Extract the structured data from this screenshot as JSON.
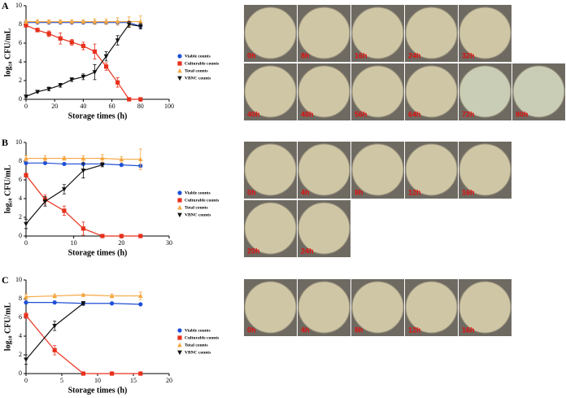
{
  "chart_data": [
    {
      "type": "line",
      "panel": "A",
      "ylabel": "log₁₀ CFU/mL",
      "xlabel": "Storage times (h)",
      "xlim": [
        0,
        100
      ],
      "xticks": [
        0,
        20,
        40,
        60,
        80,
        100
      ],
      "ylim": [
        0,
        10
      ],
      "yticks": [
        0,
        2,
        4,
        6,
        8,
        10
      ],
      "x": [
        0,
        8,
        16,
        24,
        32,
        40,
        48,
        56,
        64,
        72,
        80
      ],
      "series": [
        {
          "name": "Viable counts",
          "color": "#1f4fd6",
          "marker": "circle",
          "values": [
            8.2,
            8.2,
            8.2,
            8.2,
            8.2,
            8.2,
            8.2,
            8.2,
            8.2,
            8.2,
            7.8
          ],
          "errors": [
            0.1,
            0.1,
            0.1,
            0.1,
            0.1,
            0.1,
            0.1,
            0.1,
            0.1,
            0.1,
            0.2
          ]
        },
        {
          "name": "Culturable counts",
          "color": "#e8301c",
          "marker": "square",
          "values": [
            7.9,
            7.4,
            7.0,
            6.5,
            6.1,
            5.7,
            5.1,
            3.5,
            1.8,
            0,
            0
          ],
          "errors": [
            0.1,
            0.2,
            0.3,
            0.6,
            0.3,
            0.4,
            0.8,
            0.4,
            0.5,
            0,
            0
          ]
        },
        {
          "name": "Total counts",
          "color": "#f5a742",
          "marker": "triangle-up",
          "values": [
            8.3,
            8.3,
            8.3,
            8.3,
            8.3,
            8.3,
            8.3,
            8.3,
            8.3,
            8.3,
            8.3
          ],
          "errors": [
            0.2,
            0.2,
            0.2,
            0.2,
            0.2,
            0.2,
            0.3,
            0.3,
            0.4,
            0.5,
            0.6
          ]
        },
        {
          "name": "VBNC counts",
          "color": "#111111",
          "marker": "triangle-down",
          "values": [
            0.3,
            0.8,
            1.1,
            1.5,
            2.1,
            2.4,
            2.9,
            4.6,
            6.3,
            8.0,
            7.8
          ],
          "errors": [
            0.1,
            0.1,
            0.2,
            0.2,
            0.2,
            0.3,
            0.8,
            0.5,
            0.5,
            0.3,
            0.3
          ]
        }
      ],
      "photo_rows": [
        [
          "0h",
          "8h",
          "16h",
          "24h",
          "32h"
        ],
        [
          "40h",
          "48h",
          "56h",
          "64h",
          "72h",
          "80h"
        ]
      ]
    },
    {
      "type": "line",
      "panel": "B",
      "ylabel": "log₁₀ CFU/mL",
      "xlabel": "Storage times (h)",
      "xlim": [
        0,
        30
      ],
      "xticks": [
        0,
        10,
        20,
        30
      ],
      "ylim": [
        0,
        10
      ],
      "yticks": [
        0,
        2,
        4,
        6,
        8,
        10
      ],
      "x": [
        0,
        4,
        8,
        12,
        16,
        20,
        24
      ],
      "series": [
        {
          "name": "Viable counts",
          "color": "#1f4fd6",
          "marker": "circle",
          "values": [
            7.8,
            7.8,
            7.7,
            7.7,
            7.7,
            7.6,
            7.5
          ],
          "errors": [
            0.1,
            0.1,
            0.1,
            0.1,
            0.1,
            0.1,
            0.1
          ]
        },
        {
          "name": "Culturable counts",
          "color": "#e8301c",
          "marker": "square",
          "values": [
            6.5,
            3.9,
            2.7,
            0.8,
            0,
            0,
            0
          ],
          "errors": [
            0.2,
            0.5,
            0.5,
            0.7,
            0,
            0,
            0
          ]
        },
        {
          "name": "Total counts",
          "color": "#f5a742",
          "marker": "triangle-up",
          "values": [
            8.3,
            8.3,
            8.3,
            8.3,
            8.3,
            8.2,
            8.2
          ],
          "errors": [
            0.3,
            0.3,
            0.2,
            0.3,
            0.4,
            0.3,
            1.1
          ]
        },
        {
          "name": "VBNC counts",
          "color": "#111111",
          "marker": "triangle-down",
          "values": [
            1.3,
            3.7,
            5.0,
            7.0,
            7.6,
            null,
            null
          ],
          "errors": [
            0.5,
            0.5,
            0.5,
            0.8,
            0.2,
            null,
            null
          ]
        }
      ],
      "photo_rows": [
        [
          "0h",
          "4h",
          "8h",
          "12h",
          "16h"
        ],
        [
          "20h",
          "24h"
        ]
      ]
    },
    {
      "type": "line",
      "panel": "C",
      "ylabel": "log₁₀ CFU/mL",
      "xlabel": "Storage times (h)",
      "xlim": [
        0,
        20
      ],
      "xticks": [
        0,
        5,
        10,
        15,
        20
      ],
      "ylim": [
        0,
        10
      ],
      "yticks": [
        0,
        2,
        4,
        6,
        8,
        10
      ],
      "x": [
        0,
        4,
        8,
        12,
        16
      ],
      "series": [
        {
          "name": "Viable counts",
          "color": "#1f4fd6",
          "marker": "circle",
          "values": [
            7.6,
            7.6,
            7.5,
            7.5,
            7.4
          ],
          "errors": [
            0.1,
            0.1,
            0.1,
            0.1,
            0.1
          ]
        },
        {
          "name": "Culturable counts",
          "color": "#e8301c",
          "marker": "square",
          "values": [
            6.2,
            2.5,
            0,
            0,
            0
          ],
          "errors": [
            0.3,
            0.5,
            0,
            0,
            0
          ]
        },
        {
          "name": "Total counts",
          "color": "#f5a742",
          "marker": "triangle-up",
          "values": [
            8.2,
            8.3,
            8.4,
            8.3,
            8.3
          ],
          "errors": [
            0.3,
            0.2,
            0.1,
            0.2,
            0.4
          ]
        },
        {
          "name": "VBNC counts",
          "color": "#111111",
          "marker": "triangle-down",
          "values": [
            1.5,
            5.1,
            7.5,
            null,
            null
          ],
          "errors": [
            0.5,
            0.5,
            0.2,
            null,
            null
          ]
        }
      ],
      "photo_rows": [
        [
          "0h",
          "4h",
          "8h",
          "12h",
          "16h"
        ]
      ]
    }
  ]
}
